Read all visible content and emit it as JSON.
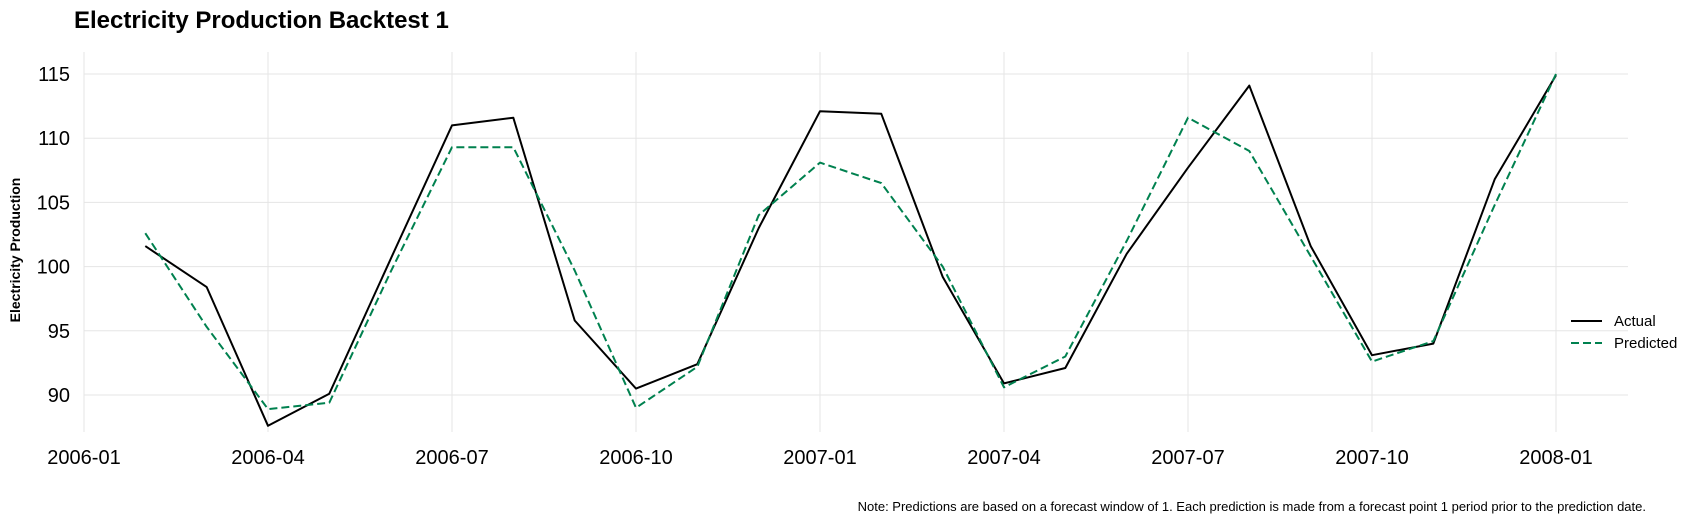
{
  "chart_data": {
    "type": "line",
    "title": "Electricity Production Backtest 1",
    "xlabel": "",
    "ylabel": "Electricity Production",
    "x_ticks": [
      "2006-01",
      "2006-04",
      "2006-07",
      "2006-10",
      "2007-01",
      "2007-04",
      "2007-07",
      "2007-10",
      "2008-01"
    ],
    "y_ticks": [
      90,
      95,
      100,
      105,
      110,
      115
    ],
    "xlim": [
      "2006-01",
      "2008-01"
    ],
    "ylim": [
      86.5,
      116.5
    ],
    "grid": true,
    "legend_position": "right",
    "x": [
      "2006-02",
      "2006-03",
      "2006-04",
      "2006-05",
      "2006-06",
      "2006-07",
      "2006-08",
      "2006-09",
      "2006-10",
      "2006-11",
      "2006-12",
      "2007-01",
      "2007-02",
      "2007-03",
      "2007-04",
      "2007-05",
      "2007-06",
      "2007-07",
      "2007-08",
      "2007-09",
      "2007-10",
      "2007-11",
      "2007-12",
      "2008-01"
    ],
    "series": [
      {
        "name": "Actual",
        "color": "#000000",
        "style": "solid",
        "values": [
          101.6,
          98.4,
          87.6,
          90.1,
          100.6,
          111.0,
          111.6,
          95.8,
          90.5,
          92.4,
          103.0,
          112.1,
          111.9,
          99.2,
          90.9,
          92.1,
          101.0,
          107.7,
          114.1,
          101.6,
          93.1,
          94.0,
          106.8,
          114.9
        ]
      },
      {
        "name": "Predicted",
        "color": "#00814f",
        "style": "dashed",
        "values": [
          102.6,
          95.3,
          88.9,
          89.4,
          99.6,
          109.3,
          109.3,
          99.7,
          89.0,
          92.2,
          104.0,
          108.1,
          106.5,
          100.0,
          90.6,
          93.0,
          102.0,
          111.6,
          109.0,
          100.8,
          92.6,
          94.2,
          104.8,
          115.0
        ]
      }
    ],
    "note": "Note: Predictions are based on a forecast window of 1. Each prediction is made from a forecast point 1 period prior to the prediction date."
  }
}
